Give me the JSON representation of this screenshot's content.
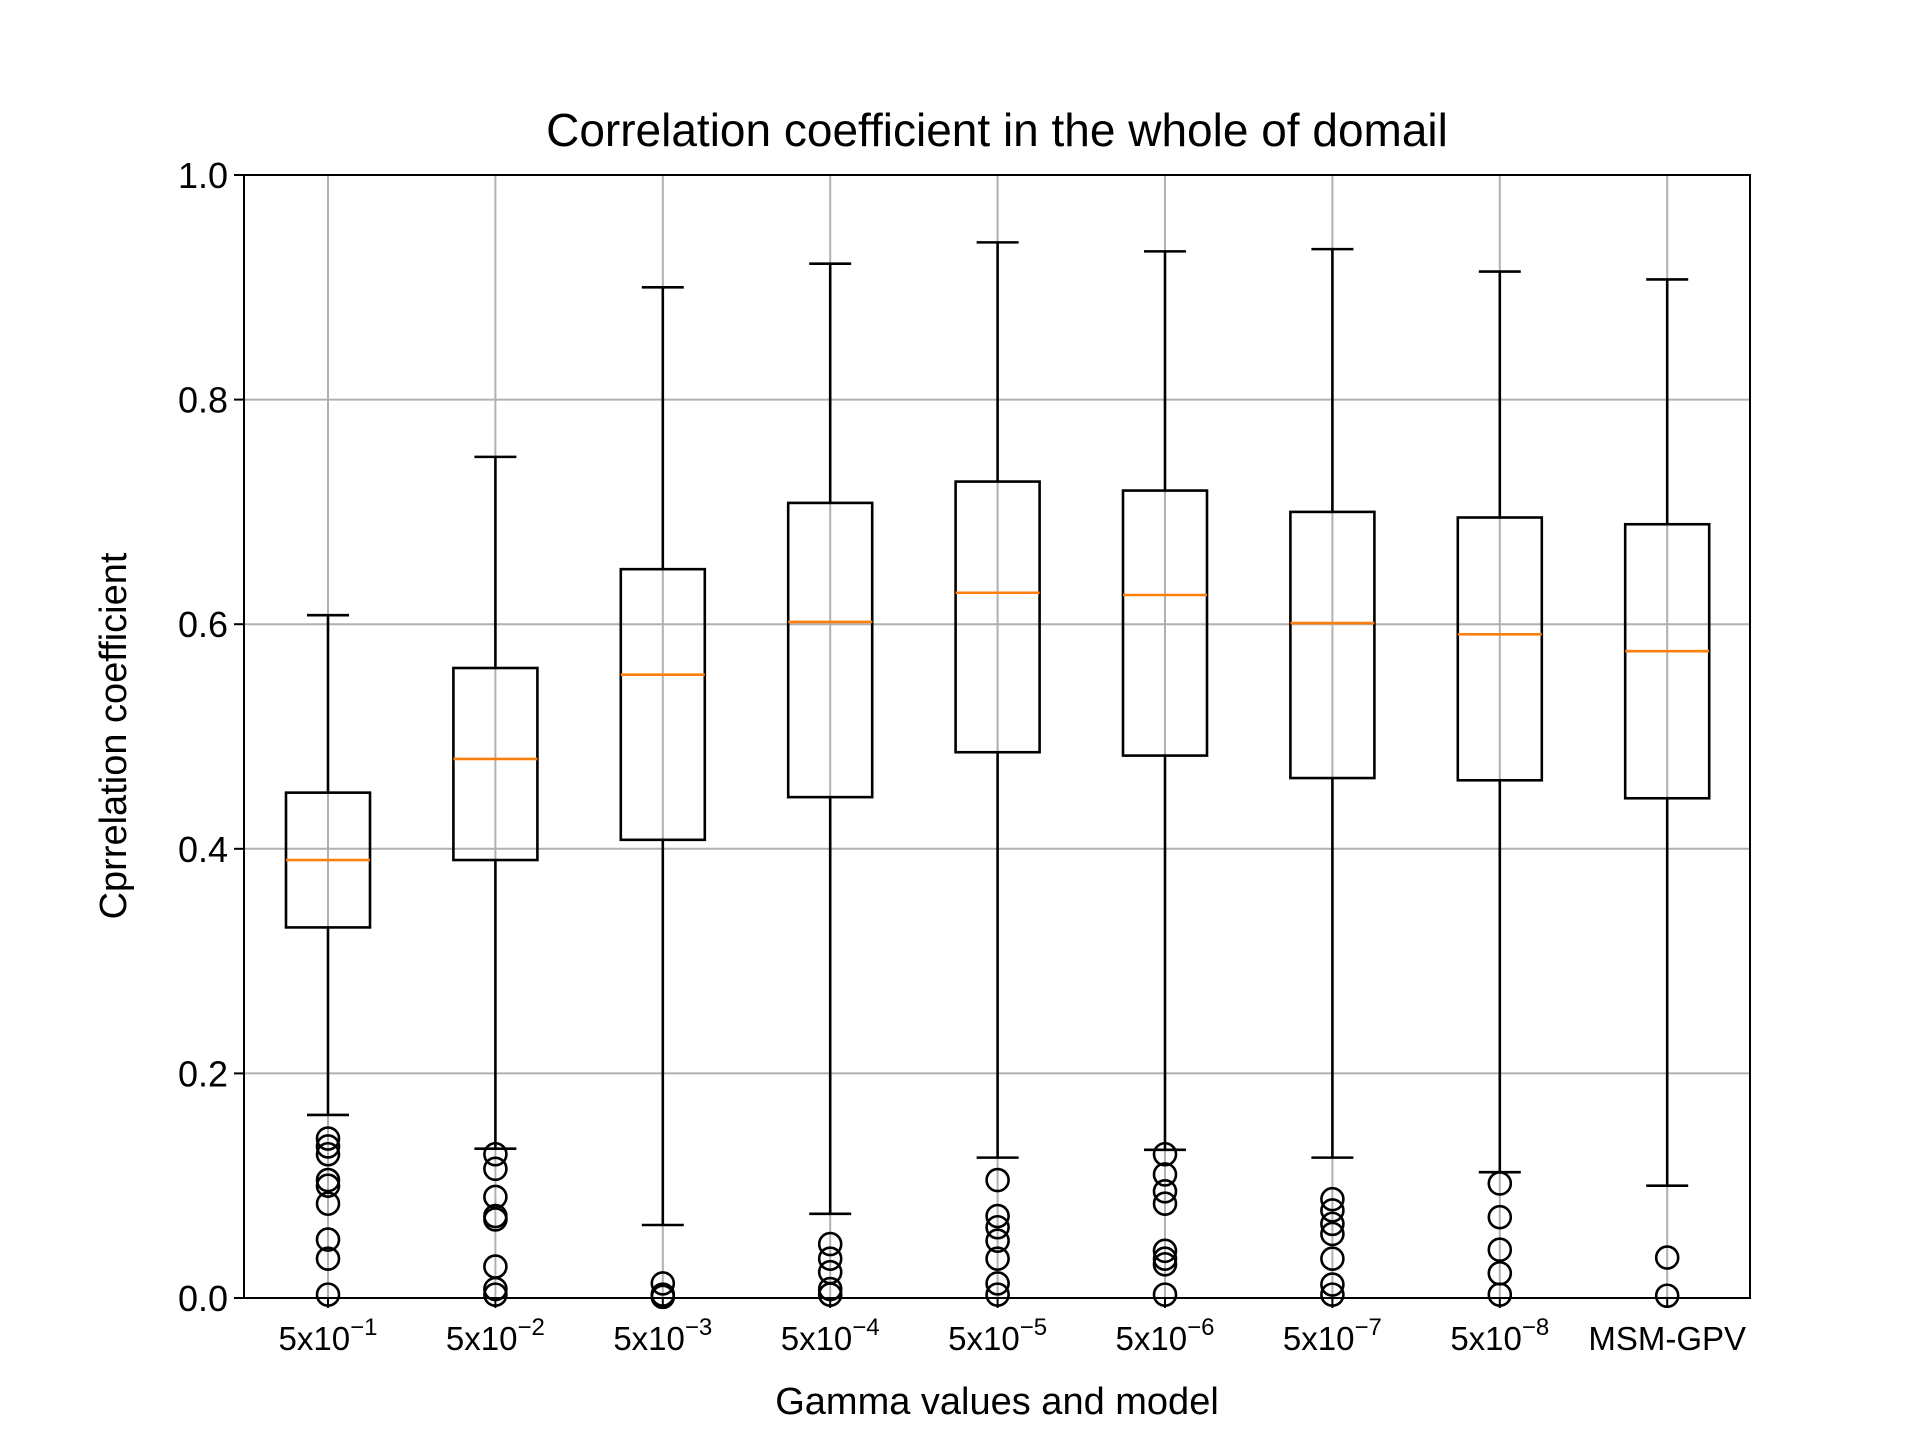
{
  "chart_data": {
    "type": "box",
    "title": "Correlation coefficient in the whole of domail",
    "xlabel": "Gamma values and model",
    "ylabel": "Cprrelation coefficient",
    "ylim": [
      0.0,
      1.0
    ],
    "yticks": [
      "0.0",
      "0.2",
      "0.4",
      "0.6",
      "0.8",
      "1.0"
    ],
    "grid": true,
    "categories": [
      {
        "base": "5x10",
        "exp": "−1"
      },
      {
        "base": "5x10",
        "exp": "−2"
      },
      {
        "base": "5x10",
        "exp": "−3"
      },
      {
        "base": "5x10",
        "exp": "−4"
      },
      {
        "base": "5x10",
        "exp": "−5"
      },
      {
        "base": "5x10",
        "exp": "−6"
      },
      {
        "base": "5x10",
        "exp": "−7"
      },
      {
        "base": "5x10",
        "exp": "−8"
      },
      {
        "base": "MSM-GPV",
        "exp": ""
      }
    ],
    "boxes": [
      {
        "whislo": 0.163,
        "q1": 0.33,
        "med": 0.39,
        "q3": 0.45,
        "whishi": 0.608,
        "fliers": [
          0.142,
          0.135,
          0.128,
          0.105,
          0.1,
          0.084,
          0.052,
          0.035,
          0.003
        ]
      },
      {
        "whislo": 0.133,
        "q1": 0.39,
        "med": 0.48,
        "q3": 0.561,
        "whishi": 0.749,
        "fliers": [
          0.128,
          0.115,
          0.09,
          0.073,
          0.07,
          0.028,
          0.008,
          0.003
        ]
      },
      {
        "whislo": 0.065,
        "q1": 0.408,
        "med": 0.555,
        "q3": 0.649,
        "whishi": 0.9,
        "fliers": [
          0.013,
          0.003,
          0.001
        ]
      },
      {
        "whislo": 0.075,
        "q1": 0.446,
        "med": 0.602,
        "q3": 0.708,
        "whishi": 0.921,
        "fliers": [
          0.048,
          0.035,
          0.023,
          0.008,
          0.003
        ]
      },
      {
        "whislo": 0.125,
        "q1": 0.486,
        "med": 0.628,
        "q3": 0.727,
        "whishi": 0.94,
        "fliers": [
          0.105,
          0.073,
          0.063,
          0.051,
          0.035,
          0.013,
          0.003
        ]
      },
      {
        "whislo": 0.132,
        "q1": 0.483,
        "med": 0.626,
        "q3": 0.719,
        "whishi": 0.932,
        "fliers": [
          0.128,
          0.11,
          0.095,
          0.084,
          0.042,
          0.035,
          0.03,
          0.003
        ]
      },
      {
        "whislo": 0.125,
        "q1": 0.463,
        "med": 0.601,
        "q3": 0.7,
        "whishi": 0.934,
        "fliers": [
          0.088,
          0.078,
          0.066,
          0.057,
          0.035,
          0.012,
          0.003
        ]
      },
      {
        "whislo": 0.112,
        "q1": 0.461,
        "med": 0.591,
        "q3": 0.695,
        "whishi": 0.914,
        "fliers": [
          0.102,
          0.072,
          0.043,
          0.022,
          0.003
        ]
      },
      {
        "whislo": 0.1,
        "q1": 0.445,
        "med": 0.576,
        "q3": 0.689,
        "whishi": 0.907,
        "fliers": [
          0.036,
          0.002
        ]
      }
    ],
    "colors": {
      "box": "#000000",
      "median": "#ff7f0e",
      "grid": "#b0b0b0",
      "background": "#ffffff"
    }
  }
}
